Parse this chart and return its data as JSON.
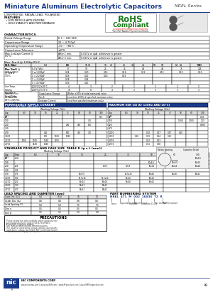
{
  "title_main": "Miniature Aluminum Electrolytic Capacitors",
  "title_series": "NREL Series",
  "title_color": "#1a3a8a",
  "rohs_line1": "RoHS",
  "rohs_line2": "Compliant",
  "rohs_sub": "includes all homogeneous materials",
  "rohs_note": "*See Part Number System for Details",
  "bg_color": "#ffffff",
  "page_num": "49",
  "footer_url": "www.niccomp.com | www.lowESR.com | www.RFpassives.com | www.SMTmagnetics.com"
}
